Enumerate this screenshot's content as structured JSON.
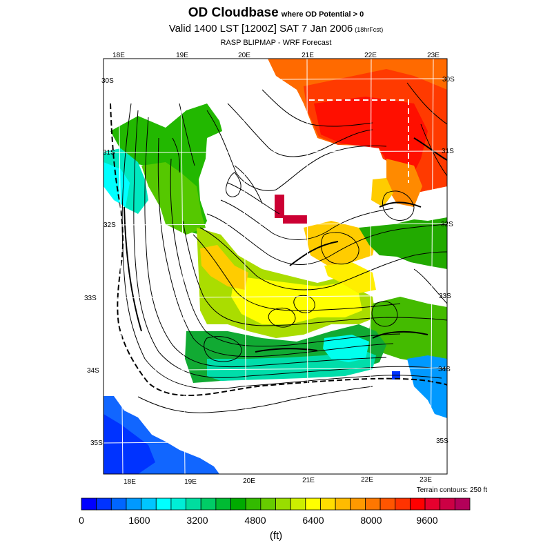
{
  "header": {
    "title": "OD Cloudbase",
    "title_note": "where OD Potential > 0",
    "valid_line": "Valid 1400 LST [1200Z] SAT 7 Jan 2006",
    "valid_note": "(18hrFcst)",
    "subtitle": "RASP BLIPMAP - WRF Forecast"
  },
  "map": {
    "top_lon_labels": [
      "18E",
      "19E",
      "20E",
      "21E",
      "22E",
      "23E"
    ],
    "bottom_lon_labels": [
      "18E",
      "19E",
      "20E",
      "21E",
      "22E",
      "23E"
    ],
    "left_lat_labels": [
      "30S",
      "31S",
      "32S",
      "33S",
      "34S",
      "35S"
    ],
    "right_lat_labels": [
      "30S",
      "31S",
      "32S",
      "33S",
      "34S",
      "35S"
    ],
    "terrain_note": "Terrain contours: 250 ft"
  },
  "colorbar": {
    "colors": [
      "#0000ff",
      "#0033ff",
      "#0066ff",
      "#0099ff",
      "#00c6ff",
      "#00ffff",
      "#00eed6",
      "#00dd9f",
      "#00cc66",
      "#00bb33",
      "#00aa00",
      "#33bb00",
      "#66cc00",
      "#99dd00",
      "#ccee00",
      "#ffff00",
      "#ffdd00",
      "#ffbb00",
      "#ff9900",
      "#ff7700",
      "#ff5500",
      "#ff3300",
      "#ff0000",
      "#e6002e",
      "#cc0044",
      "#b30059"
    ],
    "tick_labels": [
      "0",
      "1600",
      "3200",
      "4800",
      "6400",
      "8000",
      "9600"
    ],
    "units": "(ft)"
  }
}
